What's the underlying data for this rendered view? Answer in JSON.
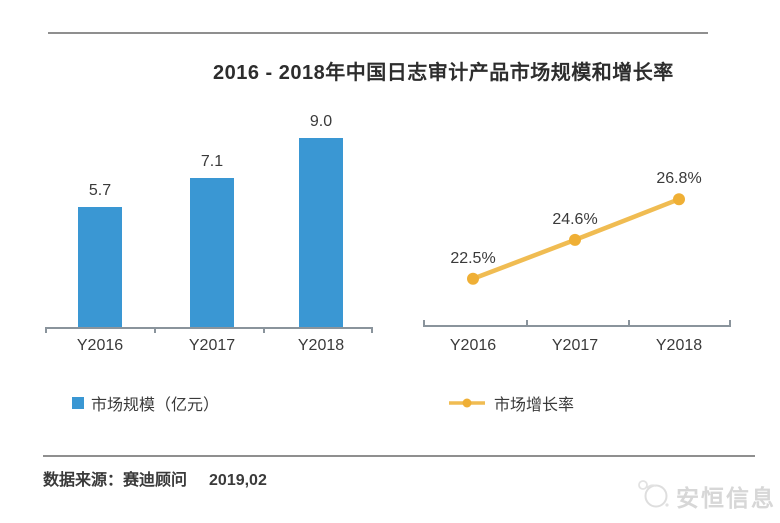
{
  "title": "2016 - 2018年中国日志审计产品市场规模和增长率",
  "source": {
    "label": "数据来源：赛迪顾问",
    "date": "2019,02"
  },
  "watermark": {
    "brand": "安恒信息"
  },
  "legends": {
    "bar": "市场规模（亿元）",
    "line": "市场增长率"
  },
  "colors": {
    "bar": "#3a97d3",
    "line": "#f0bc52",
    "dot": "#efaf35",
    "axis": "#8a949c",
    "rule": "#8f8f8f",
    "text": "#3a3a3a",
    "watermark": "#d7d7d7"
  },
  "chart_data": [
    {
      "type": "bar",
      "name": "市场规模",
      "unit": "亿元",
      "categories": [
        "Y2016",
        "Y2017",
        "Y2018"
      ],
      "values": [
        5.7,
        7.1,
        9.0
      ],
      "data_labels": [
        "5.7",
        "7.1",
        "9.0"
      ],
      "legend": "市场规模（亿元）",
      "ylim": [
        0,
        10
      ],
      "grid": false,
      "legend_position": "bottom"
    },
    {
      "type": "line",
      "name": "市场增长率",
      "categories": [
        "Y2016",
        "Y2017",
        "Y2018"
      ],
      "values": [
        22.5,
        24.6,
        26.8
      ],
      "data_labels": [
        "22.5%",
        "24.6%",
        "26.8%"
      ],
      "legend": "市场增长率",
      "ylim": [
        20,
        30
      ],
      "grid": false,
      "legend_position": "bottom"
    }
  ]
}
